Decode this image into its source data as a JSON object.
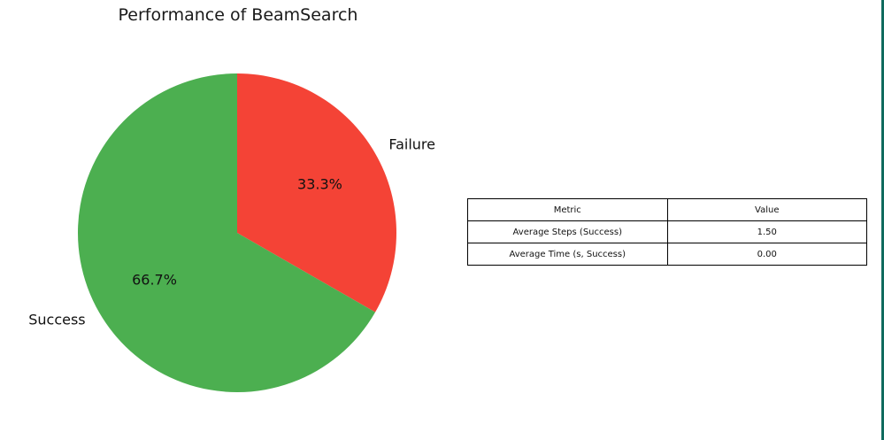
{
  "chart_data": {
    "type": "pie",
    "title": "Performance of BeamSearch",
    "slices": [
      {
        "label": "Failure",
        "value": 33.3,
        "pct_label": "33.3%",
        "color": "#f44336"
      },
      {
        "label": "Success",
        "value": 66.7,
        "pct_label": "66.7%",
        "color": "#4caf50"
      }
    ],
    "start_angle": 90,
    "direction": "clockwise",
    "table": {
      "columns": [
        "Metric",
        "Value"
      ],
      "rows": [
        [
          "Average Steps (Success)",
          "1.50"
        ],
        [
          "Average Time (s, Success)",
          "0.00"
        ]
      ]
    }
  }
}
